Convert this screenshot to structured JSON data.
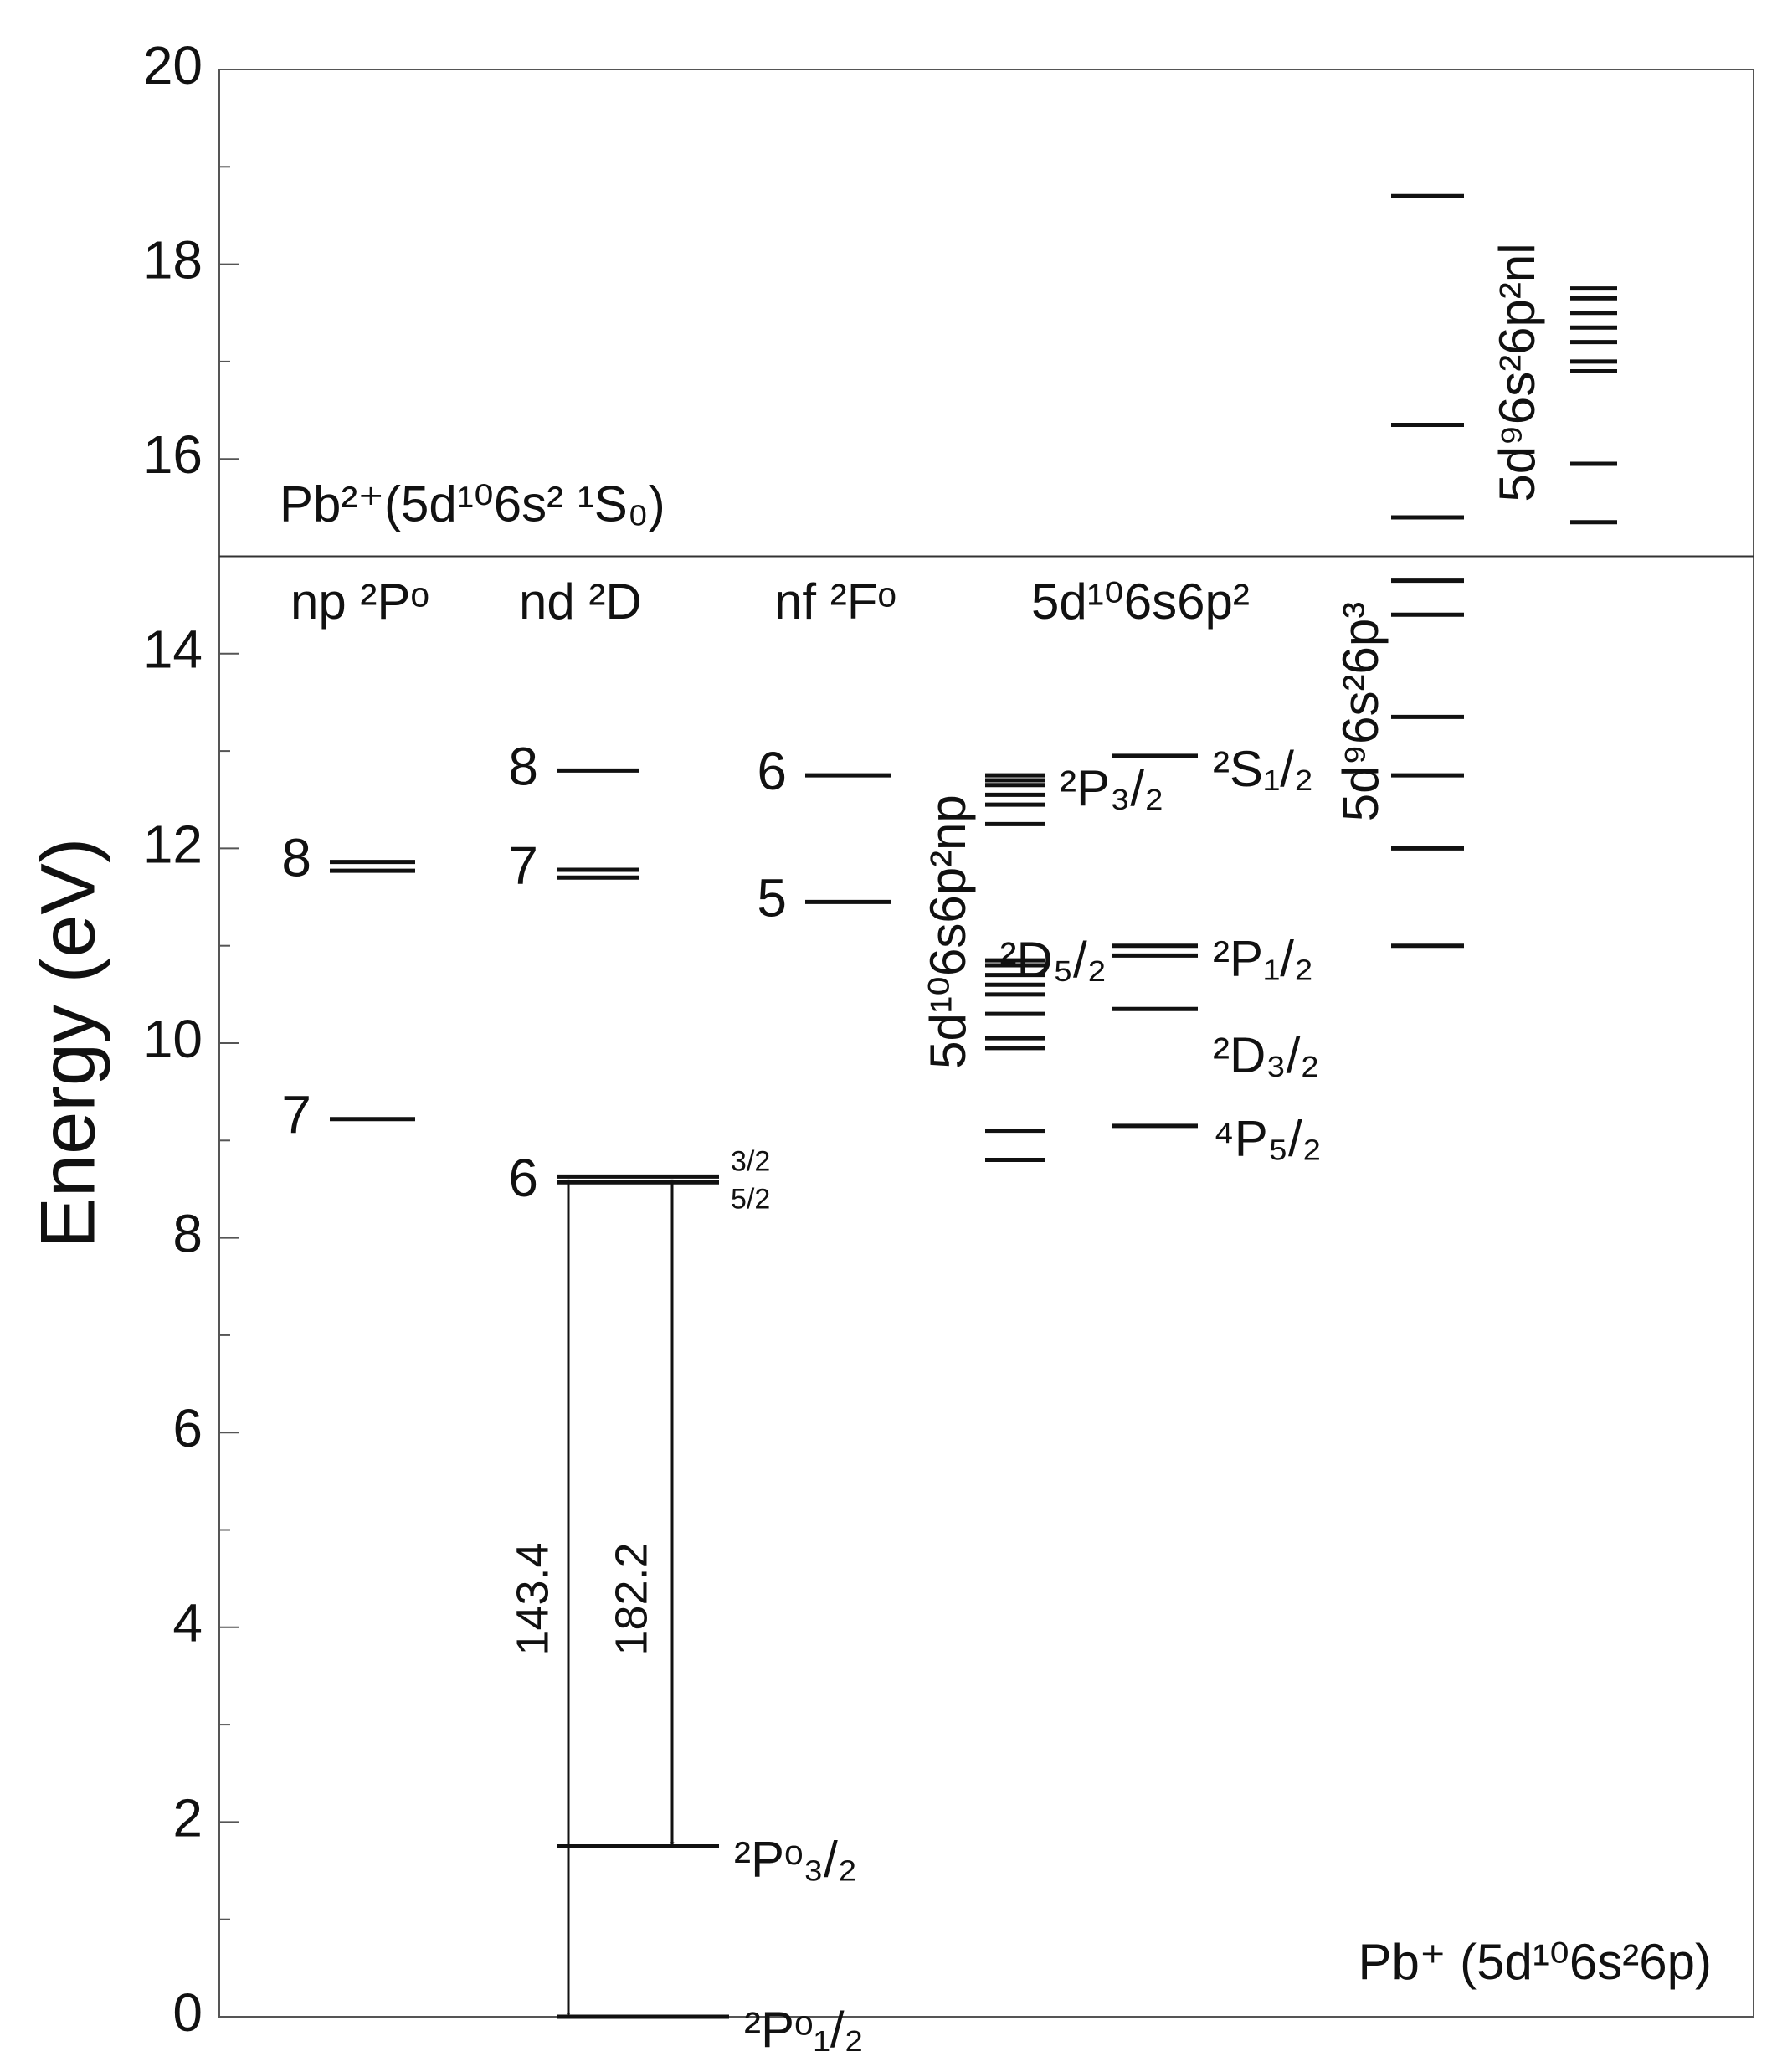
{
  "chart_data": {
    "type": "energy-levels",
    "ylabel": "Energy (eV)",
    "ylim": [
      0,
      20
    ],
    "yticks": [
      0,
      2,
      4,
      6,
      8,
      10,
      12,
      14,
      16,
      18,
      20
    ],
    "yminorticks": [
      1,
      3,
      5,
      7,
      9,
      11,
      13,
      15,
      17,
      19
    ],
    "limit": {
      "value": 15,
      "label": "Pb²⁺(5d¹⁰6s² ¹S₀)"
    },
    "columns": [
      {
        "name": "np ²Pᵒ",
        "levels": [
          9.22,
          11.77,
          11.86
        ],
        "left_labels": [
          "7",
          null,
          "8"
        ]
      },
      {
        "name": "nd ²D",
        "levels": [
          8.57,
          8.63,
          11.7,
          11.78,
          12.8
        ],
        "left_labels": [
          "6",
          null,
          null,
          "7",
          "8"
        ],
        "right_labels": [
          "5/2",
          "3/2",
          null,
          null,
          null
        ]
      },
      {
        "name": "nf ²Fᵒ",
        "levels": [
          11.45,
          12.75
        ],
        "left_labels": [
          "5",
          "6"
        ]
      },
      {
        "name": "5d¹⁰6s6p²np",
        "levels": [
          8.8,
          9.1,
          9.95,
          10.05,
          10.3,
          10.5,
          10.6,
          10.7,
          10.8,
          10.85,
          12.25,
          12.45,
          12.55,
          12.65,
          12.7,
          12.75
        ],
        "right_labels": [
          null,
          null,
          null,
          null,
          null,
          null,
          null,
          null,
          null,
          null,
          null,
          null,
          null,
          null,
          null,
          "²P₃/₂"
        ]
      },
      {
        "name": "5d¹⁰6s6p²",
        "levels": [
          9.15,
          10.35,
          10.9,
          11.0,
          12.95
        ],
        "left_labels": [
          null,
          null,
          "²D₅/₂",
          null,
          null
        ],
        "right_labels": [
          "⁴P₅/₂",
          "²D₃/₂",
          null,
          "²P₁/₂",
          "²S₁/₂"
        ]
      },
      {
        "name": "5d⁹6s²6p³",
        "levels": [
          11.0,
          12.0,
          12.75,
          13.35,
          14.4,
          14.75,
          15.4,
          16.35,
          18.7
        ]
      },
      {
        "name": "5d⁹6s²6p²nl",
        "levels": [
          15.35,
          15.95,
          16.9,
          17.0,
          17.2,
          17.35,
          17.5,
          17.65,
          17.75
        ]
      },
      {
        "name": "Pb⁺ (5d¹⁰6s²6p)",
        "levels": [
          0,
          1.75
        ],
        "right_labels": [
          "²Pᵒ₁/₂",
          "²Pᵒ₃/₂"
        ]
      }
    ],
    "transitions": [
      {
        "from": 8.6,
        "to": 0,
        "label": "143.4"
      },
      {
        "from": 8.6,
        "to": 1.75,
        "label": "182.2"
      }
    ]
  }
}
